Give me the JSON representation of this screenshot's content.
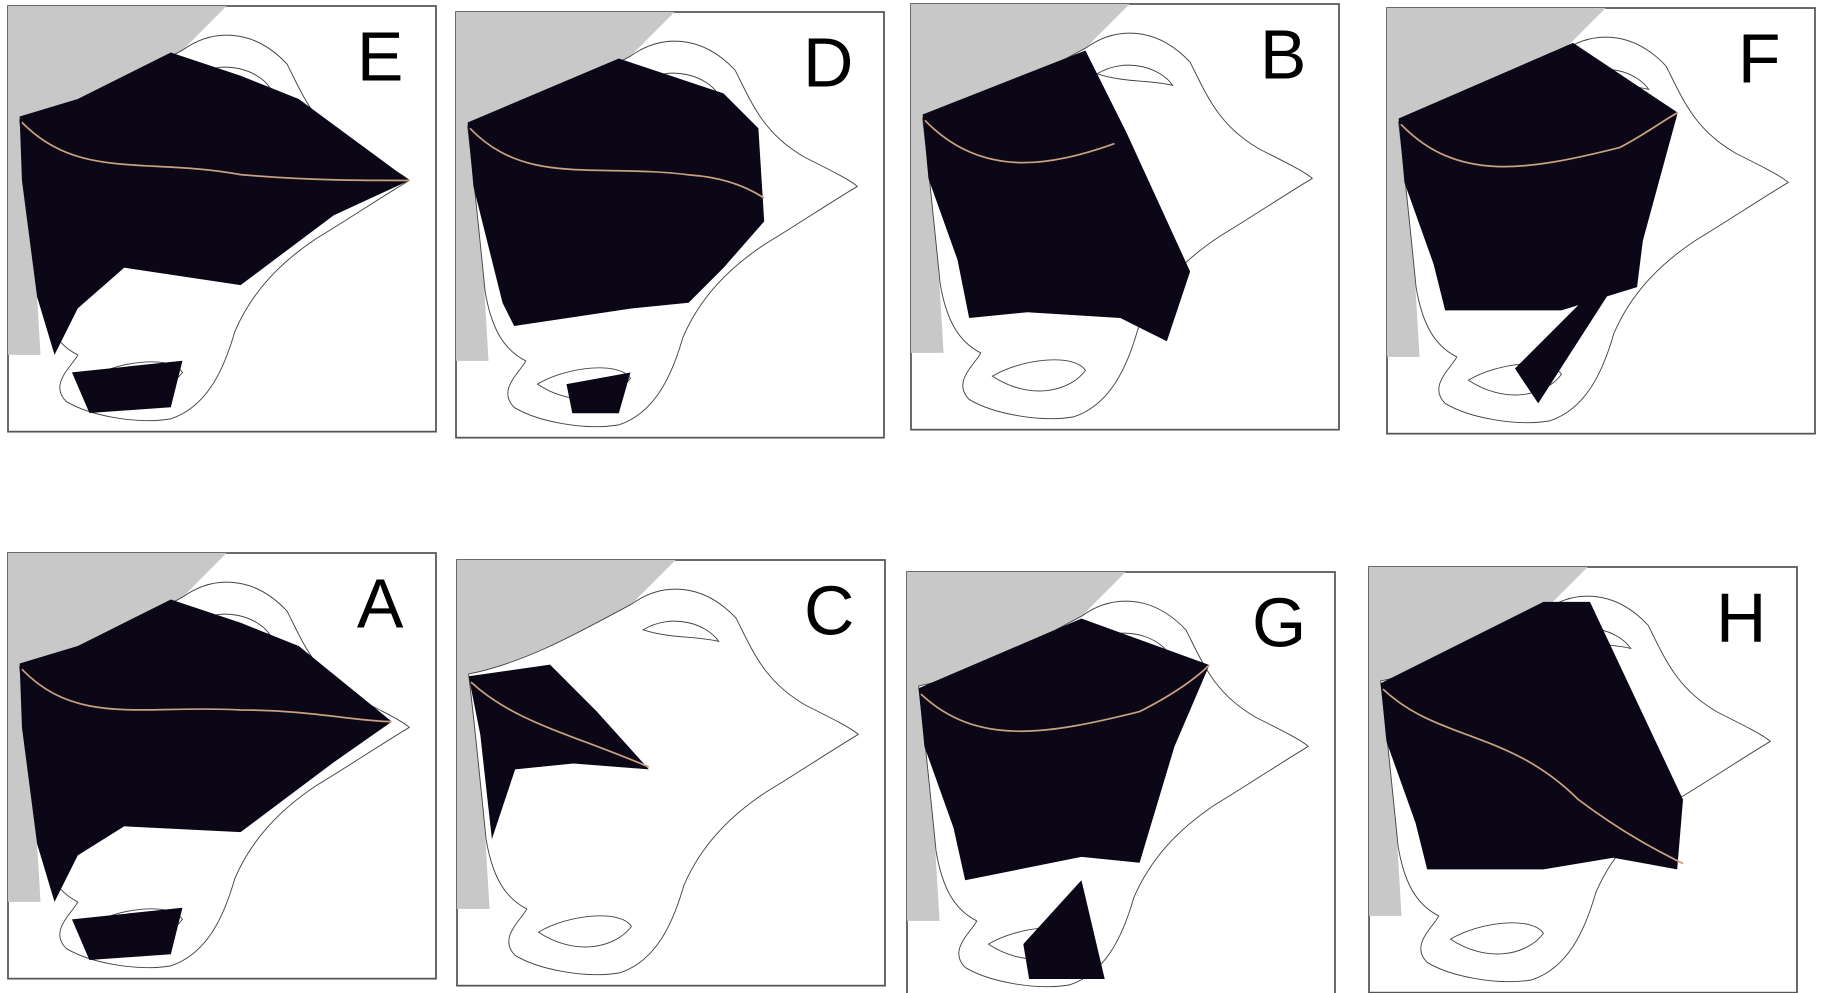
{
  "panels": [
    {
      "label": "E"
    },
    {
      "label": "D"
    },
    {
      "label": "B"
    },
    {
      "label": "F"
    },
    {
      "label": "A"
    },
    {
      "label": "C"
    },
    {
      "label": "G"
    },
    {
      "label": "H"
    }
  ]
}
